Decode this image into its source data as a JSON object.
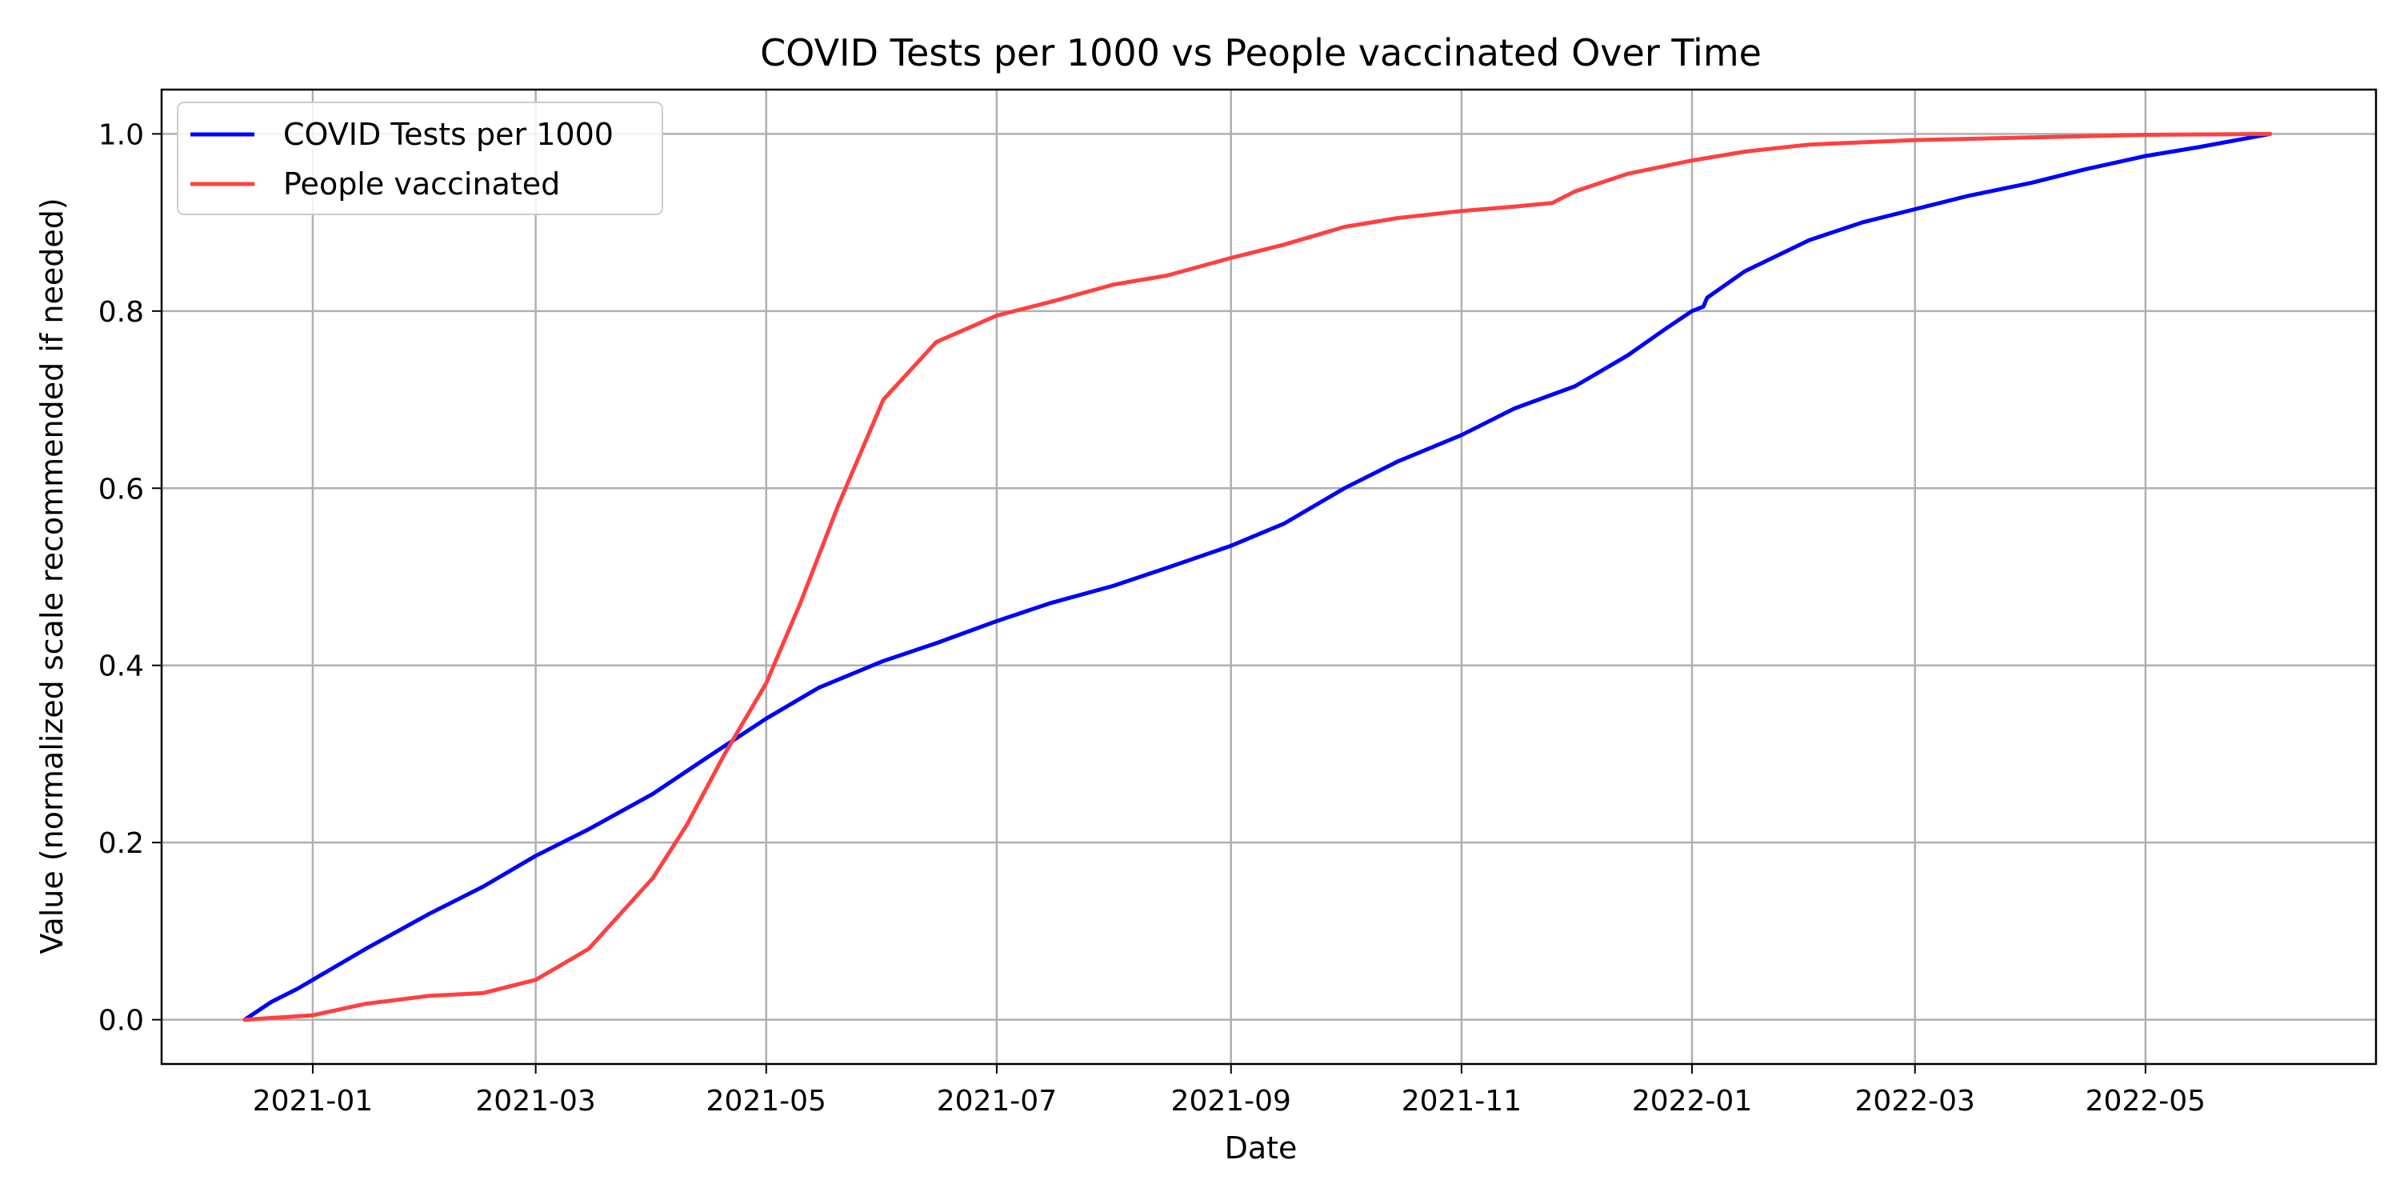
{
  "chart_data": {
    "type": "line",
    "title": "COVID Tests per 1000 vs People vaccinated Over Time",
    "xlabel": "Date",
    "ylabel": "Value (normalized scale recommended if needed)",
    "xlim": [
      "2020-11-22",
      "2022-07-01"
    ],
    "ylim": [
      -0.05,
      1.05
    ],
    "x_ticks": [
      "2021-01",
      "2021-03",
      "2021-05",
      "2021-07",
      "2021-09",
      "2021-11",
      "2022-01",
      "2022-03",
      "2022-05"
    ],
    "y_ticks": [
      "0.0",
      "0.2",
      "0.4",
      "0.6",
      "0.8",
      "1.0"
    ],
    "grid": true,
    "legend_position": "top-left",
    "series": [
      {
        "name": "COVID Tests per 1000",
        "color": "#0000ff",
        "points": [
          [
            "2020-12-14",
            0.0
          ],
          [
            "2020-12-21",
            0.02
          ],
          [
            "2020-12-28",
            0.035
          ],
          [
            "2021-01-01",
            0.045
          ],
          [
            "2021-01-15",
            0.08
          ],
          [
            "2021-02-01",
            0.12
          ],
          [
            "2021-02-15",
            0.15
          ],
          [
            "2021-03-01",
            0.185
          ],
          [
            "2021-03-15",
            0.215
          ],
          [
            "2021-04-01",
            0.255
          ],
          [
            "2021-04-15",
            0.295
          ],
          [
            "2021-05-01",
            0.34
          ],
          [
            "2021-05-15",
            0.375
          ],
          [
            "2021-06-01",
            0.405
          ],
          [
            "2021-06-15",
            0.425
          ],
          [
            "2021-07-01",
            0.45
          ],
          [
            "2021-07-15",
            0.47
          ],
          [
            "2021-08-01",
            0.49
          ],
          [
            "2021-08-15",
            0.51
          ],
          [
            "2021-09-01",
            0.535
          ],
          [
            "2021-09-15",
            0.56
          ],
          [
            "2021-10-01",
            0.6
          ],
          [
            "2021-10-15",
            0.63
          ],
          [
            "2021-11-01",
            0.66
          ],
          [
            "2021-11-15",
            0.69
          ],
          [
            "2021-12-01",
            0.715
          ],
          [
            "2021-12-15",
            0.75
          ],
          [
            "2021-12-25",
            0.78
          ],
          [
            "2022-01-01",
            0.8
          ],
          [
            "2022-01-04",
            0.805
          ],
          [
            "2022-01-05",
            0.815
          ],
          [
            "2022-01-15",
            0.845
          ],
          [
            "2022-02-01",
            0.88
          ],
          [
            "2022-02-15",
            0.9
          ],
          [
            "2022-03-01",
            0.915
          ],
          [
            "2022-03-15",
            0.93
          ],
          [
            "2022-04-01",
            0.945
          ],
          [
            "2022-04-15",
            0.96
          ],
          [
            "2022-05-01",
            0.975
          ],
          [
            "2022-05-15",
            0.985
          ],
          [
            "2022-06-03",
            1.0
          ]
        ]
      },
      {
        "name": "People vaccinated",
        "color": "#ff4040",
        "points": [
          [
            "2020-12-14",
            0.0
          ],
          [
            "2021-01-01",
            0.005
          ],
          [
            "2021-01-15",
            0.018
          ],
          [
            "2021-02-01",
            0.027
          ],
          [
            "2021-02-15",
            0.03
          ],
          [
            "2021-03-01",
            0.045
          ],
          [
            "2021-03-15",
            0.08
          ],
          [
            "2021-04-01",
            0.16
          ],
          [
            "2021-04-10",
            0.22
          ],
          [
            "2021-04-20",
            0.3
          ],
          [
            "2021-05-01",
            0.38
          ],
          [
            "2021-05-10",
            0.47
          ],
          [
            "2021-05-20",
            0.58
          ],
          [
            "2021-06-01",
            0.7
          ],
          [
            "2021-06-15",
            0.765
          ],
          [
            "2021-07-01",
            0.795
          ],
          [
            "2021-07-15",
            0.81
          ],
          [
            "2021-08-01",
            0.83
          ],
          [
            "2021-08-15",
            0.84
          ],
          [
            "2021-09-01",
            0.86
          ],
          [
            "2021-09-15",
            0.875
          ],
          [
            "2021-10-01",
            0.895
          ],
          [
            "2021-10-15",
            0.905
          ],
          [
            "2021-11-01",
            0.913
          ],
          [
            "2021-11-15",
            0.918
          ],
          [
            "2021-11-25",
            0.922
          ],
          [
            "2021-12-01",
            0.935
          ],
          [
            "2021-12-15",
            0.955
          ],
          [
            "2022-01-01",
            0.97
          ],
          [
            "2022-01-15",
            0.98
          ],
          [
            "2022-02-01",
            0.988
          ],
          [
            "2022-03-01",
            0.993
          ],
          [
            "2022-04-01",
            0.996
          ],
          [
            "2022-05-01",
            0.999
          ],
          [
            "2022-06-03",
            1.0
          ]
        ]
      }
    ]
  }
}
